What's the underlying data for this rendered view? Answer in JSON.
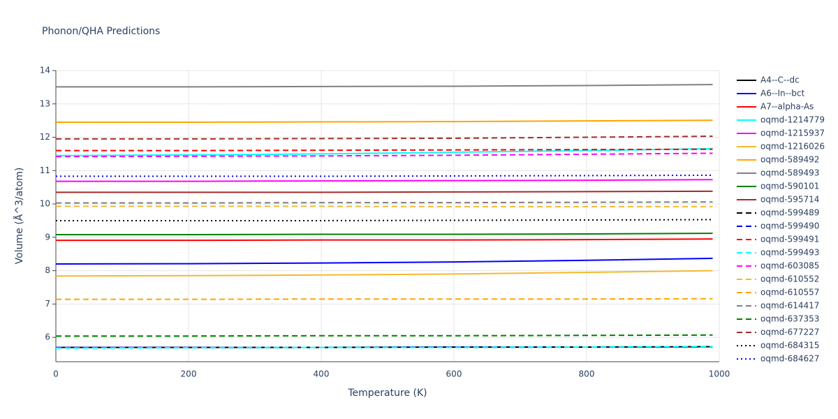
{
  "chart_data": {
    "type": "line",
    "title": "Phonon/QHA Predictions",
    "x_label": "Temperature (K)",
    "y_label": "Volume (Å^3/atom)",
    "x": [
      0,
      200,
      400,
      600,
      800,
      990
    ],
    "xlim": [
      0,
      1000
    ],
    "xticks": [
      0,
      200,
      400,
      600,
      800,
      1000
    ],
    "ylim": [
      5.27,
      14
    ],
    "yticks": [
      6,
      7,
      8,
      9,
      10,
      11,
      12,
      13,
      14
    ],
    "grid": true,
    "series": [
      {
        "name": "A4--C--dc",
        "color": "#000000",
        "dash": "solid",
        "values": [
          5.7,
          5.7,
          5.7,
          5.71,
          5.71,
          5.72
        ]
      },
      {
        "name": "A6--In--bct",
        "color": "#0000ff",
        "dash": "solid",
        "values": [
          8.2,
          8.21,
          8.23,
          8.26,
          8.31,
          8.37
        ]
      },
      {
        "name": "A7--alpha-As",
        "color": "#ff0000",
        "dash": "solid",
        "values": [
          8.91,
          8.91,
          8.92,
          8.92,
          8.93,
          8.95
        ]
      },
      {
        "name": "oqmd-1214779",
        "color": "#00ffff",
        "dash": "solid",
        "values": [
          11.45,
          11.47,
          11.5,
          11.55,
          11.6,
          11.66
        ]
      },
      {
        "name": "oqmd-1215937",
        "color": "#ff00ff",
        "dash": "solid",
        "values": [
          10.68,
          10.68,
          10.69,
          10.7,
          10.71,
          10.73
        ]
      },
      {
        "name": "oqmd-1216026",
        "color": "#f5b82e",
        "dash": "solid",
        "values": [
          7.84,
          7.85,
          7.87,
          7.9,
          7.95,
          8.0
        ]
      },
      {
        "name": "oqmd-589492",
        "color": "#ffa500",
        "dash": "solid",
        "values": [
          12.45,
          12.45,
          12.46,
          12.47,
          12.49,
          12.51
        ]
      },
      {
        "name": "oqmd-589493",
        "color": "#808080",
        "dash": "solid",
        "values": [
          13.51,
          13.51,
          13.52,
          13.53,
          13.55,
          13.58
        ]
      },
      {
        "name": "oqmd-590101",
        "color": "#008000",
        "dash": "solid",
        "values": [
          9.08,
          9.08,
          9.09,
          9.09,
          9.1,
          9.12
        ]
      },
      {
        "name": "oqmd-595714",
        "color": "#a52a2a",
        "dash": "solid",
        "values": [
          10.35,
          10.35,
          10.35,
          10.36,
          10.37,
          10.38
        ]
      },
      {
        "name": "oqmd-599489",
        "color": "#000000",
        "dash": "dash",
        "values": [
          5.69,
          5.69,
          5.7,
          5.7,
          5.71,
          5.72
        ]
      },
      {
        "name": "oqmd-599490",
        "color": "#0000ff",
        "dash": "dash",
        "values": [
          5.7,
          5.7,
          5.7,
          5.71,
          5.71,
          5.72
        ]
      },
      {
        "name": "oqmd-599491",
        "color": "#ff0000",
        "dash": "dash",
        "values": [
          11.6,
          11.6,
          11.61,
          11.62,
          11.63,
          11.64
        ]
      },
      {
        "name": "oqmd-599493",
        "color": "#00ffff",
        "dash": "dash",
        "values": [
          5.68,
          5.69,
          5.7,
          5.7,
          5.71,
          5.73
        ]
      },
      {
        "name": "oqmd-603085",
        "color": "#ff00ff",
        "dash": "dash",
        "values": [
          11.42,
          11.43,
          11.44,
          11.46,
          11.49,
          11.52
        ]
      },
      {
        "name": "oqmd-610552",
        "color": "#f5b82e",
        "dash": "dash",
        "values": [
          9.93,
          9.93,
          9.93,
          9.92,
          9.92,
          9.92
        ]
      },
      {
        "name": "oqmd-610557",
        "color": "#ffa500",
        "dash": "dash",
        "values": [
          7.14,
          7.14,
          7.15,
          7.15,
          7.15,
          7.16
        ]
      },
      {
        "name": "oqmd-614417",
        "color": "#808080",
        "dash": "dash",
        "values": [
          10.03,
          10.03,
          10.04,
          10.04,
          10.05,
          10.06
        ]
      },
      {
        "name": "oqmd-637353",
        "color": "#008000",
        "dash": "dash",
        "values": [
          6.04,
          6.04,
          6.05,
          6.05,
          6.06,
          6.07
        ]
      },
      {
        "name": "oqmd-677227",
        "color": "#a52a2a",
        "dash": "dash",
        "values": [
          11.95,
          11.95,
          11.96,
          11.97,
          12.0,
          12.03
        ]
      },
      {
        "name": "oqmd-684315",
        "color": "#000000",
        "dash": "dot",
        "values": [
          9.5,
          9.5,
          9.5,
          9.51,
          9.52,
          9.53
        ]
      },
      {
        "name": "oqmd-684627",
        "color": "#0000ff",
        "dash": "dot",
        "values": [
          10.83,
          10.83,
          10.83,
          10.84,
          10.85,
          10.86
        ]
      }
    ]
  }
}
